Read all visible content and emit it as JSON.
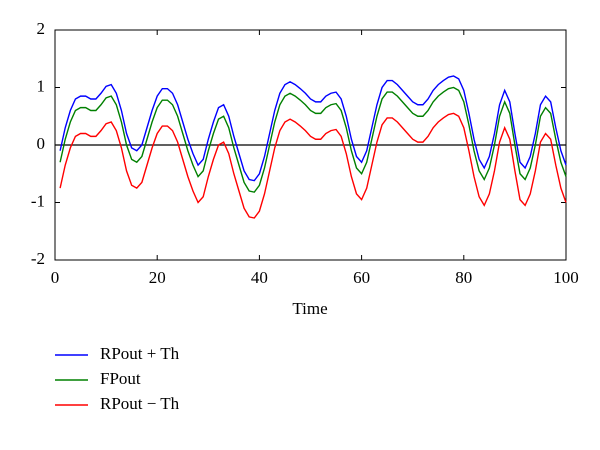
{
  "chart_data": {
    "type": "line",
    "xlabel": "Time",
    "x": [
      1,
      2,
      3,
      4,
      5,
      6,
      7,
      8,
      9,
      10,
      11,
      12,
      13,
      14,
      15,
      16,
      17,
      18,
      19,
      20,
      21,
      22,
      23,
      24,
      25,
      26,
      27,
      28,
      29,
      30,
      31,
      32,
      33,
      34,
      35,
      36,
      37,
      38,
      39,
      40,
      41,
      42,
      43,
      44,
      45,
      46,
      47,
      48,
      49,
      50,
      51,
      52,
      53,
      54,
      55,
      56,
      57,
      58,
      59,
      60,
      61,
      62,
      63,
      64,
      65,
      66,
      67,
      68,
      69,
      70,
      71,
      72,
      73,
      74,
      75,
      76,
      77,
      78,
      79,
      80,
      81,
      82,
      83,
      84,
      85,
      86,
      87,
      88,
      89,
      90,
      91,
      92,
      93,
      94,
      95,
      96,
      97,
      98,
      99,
      100
    ],
    "series": [
      {
        "name": "RPout + Th",
        "color": "#0000ff",
        "values": [
          -0.1,
          0.3,
          0.6,
          0.8,
          0.85,
          0.85,
          0.8,
          0.8,
          0.9,
          1.02,
          1.05,
          0.9,
          0.6,
          0.2,
          -0.05,
          -0.1,
          0,
          0.3,
          0.6,
          0.85,
          0.98,
          0.98,
          0.9,
          0.7,
          0.4,
          0.1,
          -0.15,
          -0.35,
          -0.25,
          0.1,
          0.4,
          0.65,
          0.7,
          0.5,
          0.15,
          -0.15,
          -0.45,
          -0.6,
          -0.62,
          -0.5,
          -0.2,
          0.2,
          0.6,
          0.9,
          1.05,
          1.1,
          1.05,
          0.98,
          0.9,
          0.8,
          0.75,
          0.75,
          0.85,
          0.9,
          0.92,
          0.8,
          0.5,
          0.1,
          -0.2,
          -0.3,
          -0.1,
          0.3,
          0.7,
          1,
          1.12,
          1.12,
          1.05,
          0.95,
          0.85,
          0.75,
          0.7,
          0.7,
          0.8,
          0.95,
          1.05,
          1.12,
          1.18,
          1.2,
          1.15,
          0.95,
          0.55,
          0.1,
          -0.25,
          -0.4,
          -0.2,
          0.2,
          0.7,
          0.95,
          0.75,
          0.2,
          -0.3,
          -0.4,
          -0.2,
          0.2,
          0.7,
          0.85,
          0.75,
          0.3,
          -0.1,
          -0.35
        ]
      },
      {
        "name": "FPout",
        "color": "#008000",
        "values": [
          -0.3,
          0.1,
          0.4,
          0.6,
          0.65,
          0.65,
          0.6,
          0.6,
          0.7,
          0.82,
          0.85,
          0.7,
          0.4,
          0,
          -0.25,
          -0.3,
          -0.2,
          0.1,
          0.4,
          0.65,
          0.78,
          0.78,
          0.7,
          0.5,
          0.2,
          -0.1,
          -0.35,
          -0.55,
          -0.45,
          -0.1,
          0.2,
          0.45,
          0.5,
          0.3,
          -0.05,
          -0.35,
          -0.65,
          -0.8,
          -0.82,
          -0.7,
          -0.4,
          0,
          0.4,
          0.7,
          0.85,
          0.9,
          0.85,
          0.78,
          0.7,
          0.6,
          0.55,
          0.55,
          0.65,
          0.7,
          0.72,
          0.6,
          0.3,
          -0.1,
          -0.4,
          -0.5,
          -0.3,
          0.1,
          0.5,
          0.8,
          0.92,
          0.92,
          0.85,
          0.75,
          0.65,
          0.55,
          0.5,
          0.5,
          0.6,
          0.75,
          0.85,
          0.92,
          0.98,
          1,
          0.95,
          0.75,
          0.35,
          -0.1,
          -0.45,
          -0.6,
          -0.4,
          0,
          0.5,
          0.75,
          0.55,
          0,
          -0.5,
          -0.6,
          -0.4,
          0,
          0.5,
          0.65,
          0.55,
          0.1,
          -0.3,
          -0.55
        ]
      },
      {
        "name": "RPout − Th",
        "color": "#ff0000",
        "values": [
          -0.75,
          -0.35,
          -0.05,
          0.15,
          0.2,
          0.2,
          0.15,
          0.15,
          0.25,
          0.37,
          0.4,
          0.25,
          -0.05,
          -0.45,
          -0.7,
          -0.75,
          -0.65,
          -0.35,
          -0.05,
          0.2,
          0.33,
          0.33,
          0.25,
          0.05,
          -0.25,
          -0.55,
          -0.8,
          -1,
          -0.9,
          -0.55,
          -0.25,
          0,
          0.05,
          -0.15,
          -0.5,
          -0.8,
          -1.1,
          -1.25,
          -1.27,
          -1.15,
          -0.85,
          -0.45,
          -0.05,
          0.25,
          0.4,
          0.45,
          0.4,
          0.33,
          0.25,
          0.15,
          0.1,
          0.1,
          0.2,
          0.25,
          0.27,
          0.15,
          -0.15,
          -0.55,
          -0.85,
          -0.95,
          -0.75,
          -0.35,
          0.05,
          0.35,
          0.47,
          0.47,
          0.4,
          0.3,
          0.2,
          0.1,
          0.05,
          0.05,
          0.15,
          0.3,
          0.4,
          0.47,
          0.53,
          0.55,
          0.5,
          0.3,
          -0.1,
          -0.55,
          -0.9,
          -1.05,
          -0.85,
          -0.45,
          0.05,
          0.3,
          0.1,
          -0.45,
          -0.95,
          -1.05,
          -0.85,
          -0.45,
          0.05,
          0.2,
          0.1,
          -0.35,
          -0.75,
          -1
        ]
      }
    ],
    "xlim": [
      0,
      100
    ],
    "xticks": [
      0,
      20,
      40,
      60,
      80,
      100
    ],
    "ylim": [
      -2,
      2
    ],
    "yticks": [
      -2,
      -1,
      0,
      1,
      2
    ]
  }
}
